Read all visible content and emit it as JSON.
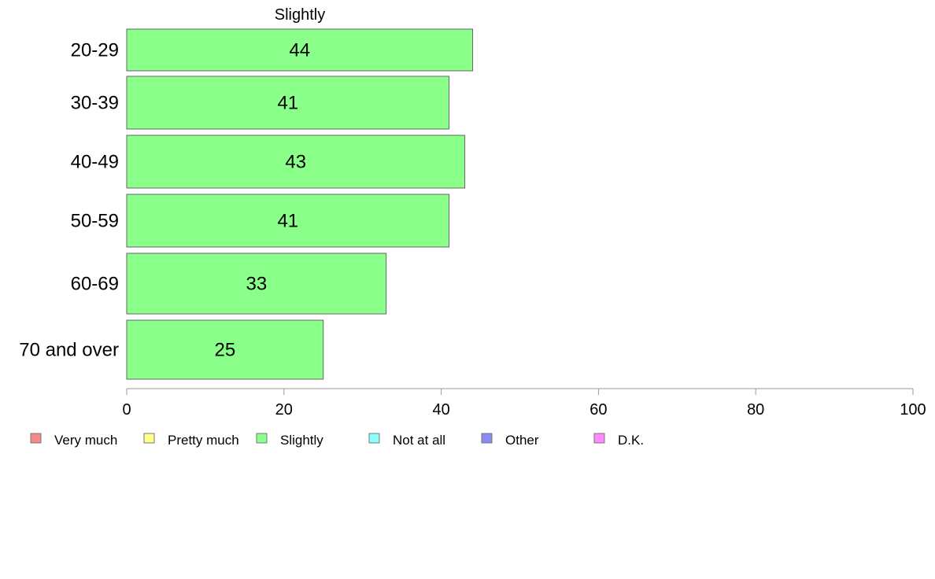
{
  "chart_data": {
    "type": "bar",
    "orientation": "horizontal",
    "title": "Slightly",
    "categories": [
      "20-29",
      "30-39",
      "40-49",
      "50-59",
      "60-69",
      "70 and over"
    ],
    "series": [
      {
        "name": "Slightly",
        "values": [
          44,
          41,
          43,
          41,
          33,
          25
        ],
        "color": "#8aff8a"
      }
    ],
    "xlim": [
      0,
      100
    ],
    "x_ticks": [
      0,
      20,
      40,
      60,
      80,
      100
    ],
    "grid": false,
    "legend_position": "bottom",
    "legend": [
      {
        "label": "Very much",
        "color": "#f58a8a"
      },
      {
        "label": "Pretty much",
        "color": "#ffff8a"
      },
      {
        "label": "Slightly",
        "color": "#8aff8a"
      },
      {
        "label": "Not at all",
        "color": "#8affff"
      },
      {
        "label": "Other",
        "color": "#8a8af5"
      },
      {
        "label": "D.K.",
        "color": "#ff8aff"
      }
    ]
  }
}
